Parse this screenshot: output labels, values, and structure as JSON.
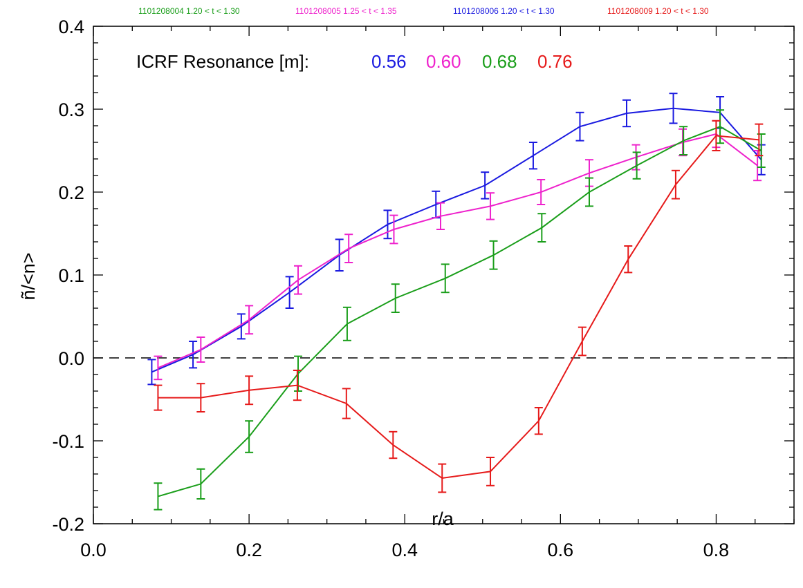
{
  "chart_data": {
    "type": "line",
    "xlabel": "r/a",
    "ylabel": "ñ/<n>",
    "xlim": [
      0.0,
      0.9
    ],
    "ylim": [
      -0.2,
      0.4
    ],
    "x_ticks": [
      "0.0",
      "0.2",
      "0.4",
      "0.6",
      "0.8"
    ],
    "y_ticks": [
      "-0.2",
      "-0.1",
      "0.0",
      "0.1",
      "0.2",
      "0.3",
      "0.4"
    ],
    "zero_line": "dashed",
    "grid": false,
    "legend_prefix": "ICRF Resonance [m]:",
    "legend_placement": "top-left",
    "shot_labels": [
      {
        "text": "1101208004 1.20 < t < 1.30",
        "color": "#1a9e1a"
      },
      {
        "text": "1101208005 1.25 < t < 1.35",
        "color": "#ee22cc"
      },
      {
        "text": "1101208006 1.20 < t < 1.30",
        "color": "#1a1ae0"
      },
      {
        "text": "1101208009 1.20 < t < 1.30",
        "color": "#e61a1a"
      }
    ],
    "series": [
      {
        "name": "0.56",
        "color": "#1a1ae0",
        "x": [
          0.075,
          0.128,
          0.19,
          0.252,
          0.316,
          0.378,
          0.44,
          0.503,
          0.565,
          0.625,
          0.685,
          0.745,
          0.805,
          0.858
        ],
        "y": [
          -0.017,
          0.004,
          0.038,
          0.079,
          0.124,
          0.161,
          0.185,
          0.208,
          0.244,
          0.279,
          0.295,
          0.301,
          0.296,
          0.239
        ],
        "err": [
          0.015,
          0.016,
          0.015,
          0.019,
          0.019,
          0.017,
          0.016,
          0.016,
          0.016,
          0.017,
          0.016,
          0.018,
          0.019,
          0.018
        ]
      },
      {
        "name": "0.60",
        "color": "#ee22cc",
        "x": [
          0.083,
          0.138,
          0.2,
          0.263,
          0.328,
          0.386,
          0.446,
          0.51,
          0.575,
          0.637,
          0.697,
          0.757,
          0.8,
          0.853
        ],
        "y": [
          -0.012,
          0.01,
          0.046,
          0.094,
          0.132,
          0.155,
          0.171,
          0.183,
          0.2,
          0.223,
          0.242,
          0.26,
          0.27,
          0.232
        ],
        "err": [
          0.014,
          0.015,
          0.017,
          0.017,
          0.017,
          0.017,
          0.016,
          0.016,
          0.015,
          0.016,
          0.015,
          0.016,
          0.016,
          0.018
        ]
      },
      {
        "name": "0.68",
        "color": "#1a9e1a",
        "x": [
          0.083,
          0.138,
          0.2,
          0.263,
          0.326,
          0.388,
          0.452,
          0.514,
          0.576,
          0.637,
          0.698,
          0.758,
          0.805,
          0.858
        ],
        "y": [
          -0.167,
          -0.152,
          -0.095,
          -0.019,
          0.041,
          0.072,
          0.096,
          0.124,
          0.157,
          0.2,
          0.232,
          0.262,
          0.279,
          0.25
        ],
        "err": [
          0.016,
          0.018,
          0.019,
          0.021,
          0.02,
          0.017,
          0.017,
          0.017,
          0.017,
          0.017,
          0.016,
          0.017,
          0.02,
          0.02
        ]
      },
      {
        "name": "0.76",
        "color": "#e61a1a",
        "x": [
          0.083,
          0.138,
          0.2,
          0.262,
          0.325,
          0.385,
          0.448,
          0.51,
          0.572,
          0.628,
          0.687,
          0.748,
          0.8,
          0.855
        ],
        "y": [
          -0.048,
          -0.048,
          -0.039,
          -0.033,
          -0.055,
          -0.105,
          -0.145,
          -0.137,
          -0.076,
          0.02,
          0.119,
          0.209,
          0.268,
          0.263
        ],
        "err": [
          0.015,
          0.017,
          0.017,
          0.018,
          0.018,
          0.016,
          0.017,
          0.017,
          0.016,
          0.017,
          0.016,
          0.017,
          0.018,
          0.019
        ]
      }
    ]
  }
}
